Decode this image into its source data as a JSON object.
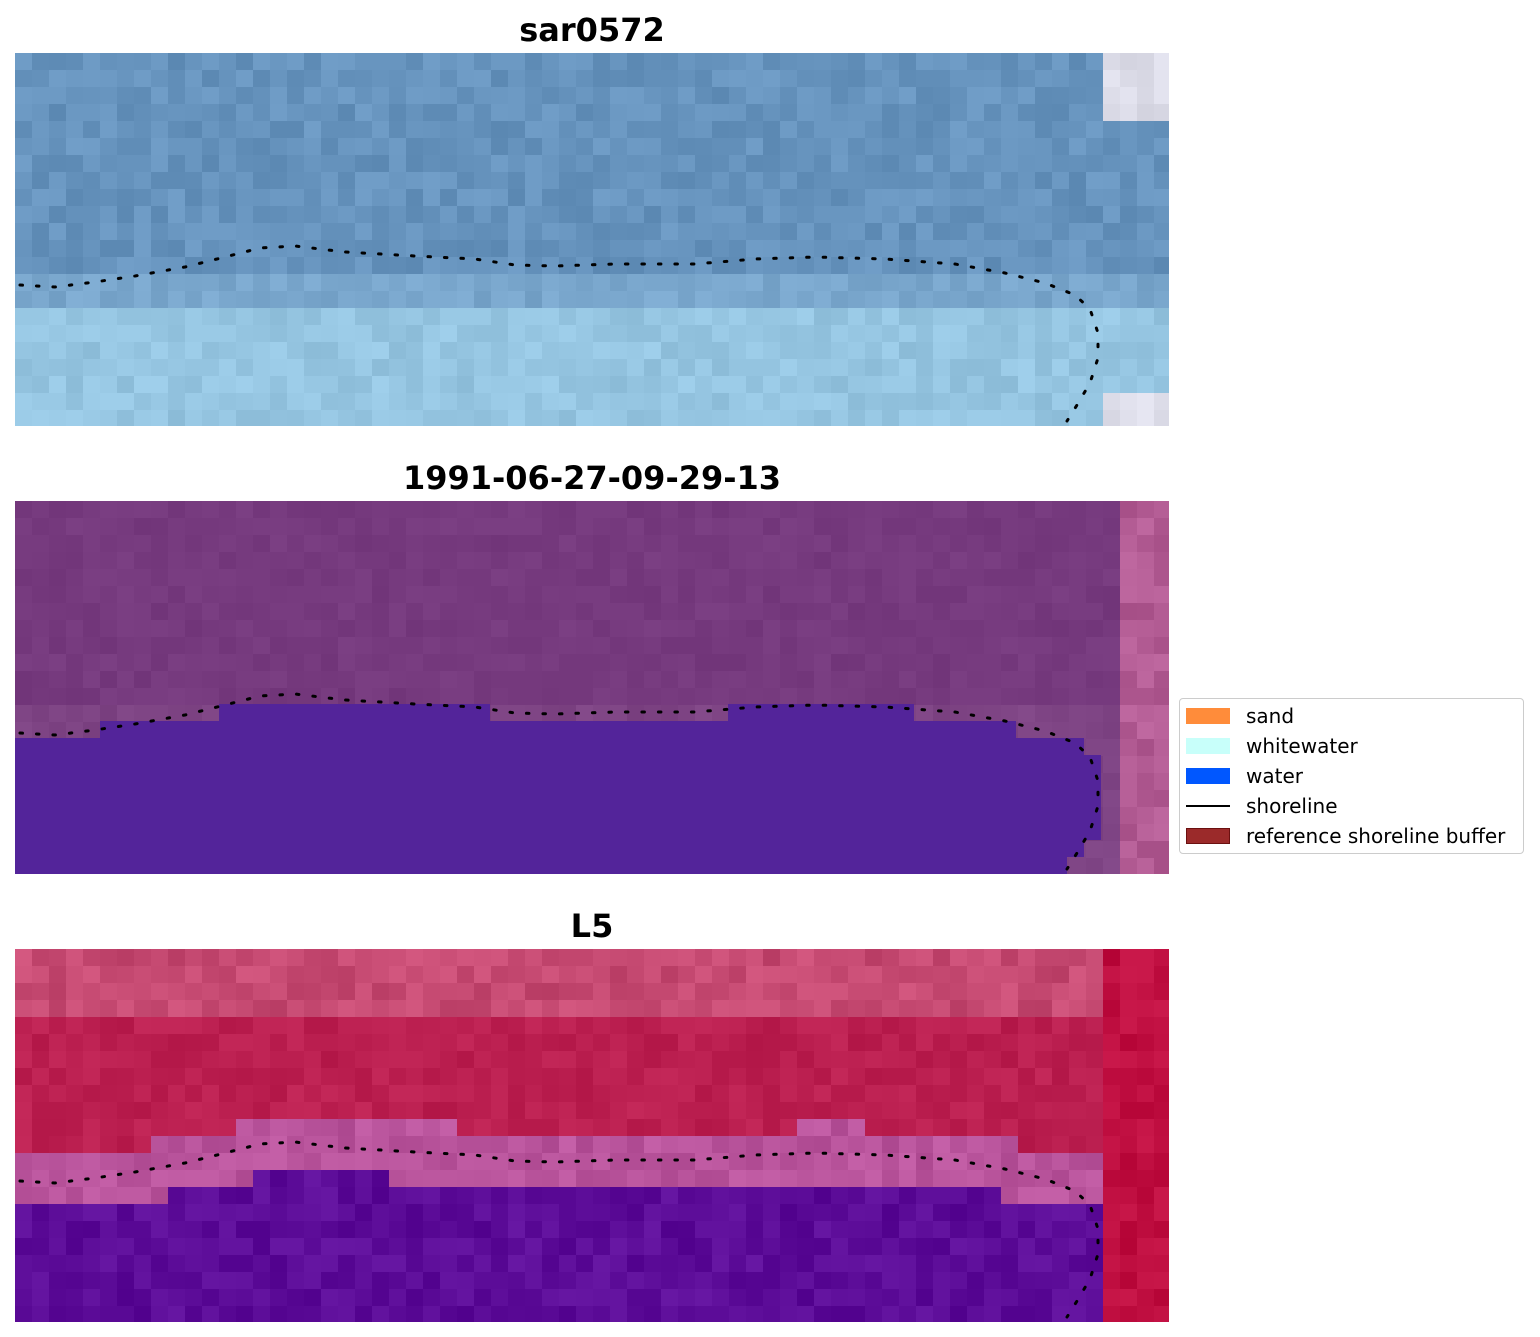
{
  "panels": [
    {
      "title": "sar0572",
      "colors": {
        "top": "#6693bd",
        "band": "#79a6cc",
        "bottom": "#95c5e1",
        "edge": "#dcdce8"
      }
    },
    {
      "title": "1991-06-27-09-29-13",
      "colors": {
        "top": "#763a7e",
        "band": "#7e4484",
        "water": "#53249a",
        "edge": "#b35c94"
      }
    },
    {
      "title": "L5",
      "colors": {
        "top": "#c64a72",
        "mid": "#bb1f50",
        "band": "#b9549c",
        "bottom": "#5c0c98",
        "edge": "#bf0e40"
      }
    }
  ],
  "legend": {
    "items": [
      {
        "label": "sand",
        "kind": "patch",
        "color": "#ff8c3a"
      },
      {
        "label": "whitewater",
        "kind": "patch",
        "color": "#c8fffa"
      },
      {
        "label": "water",
        "kind": "patch",
        "color": "#0057ff"
      },
      {
        "label": "shoreline",
        "kind": "line",
        "color": "#000000"
      },
      {
        "label": "reference shoreline buffer",
        "kind": "patch",
        "color": "#9b2a2a"
      }
    ]
  }
}
